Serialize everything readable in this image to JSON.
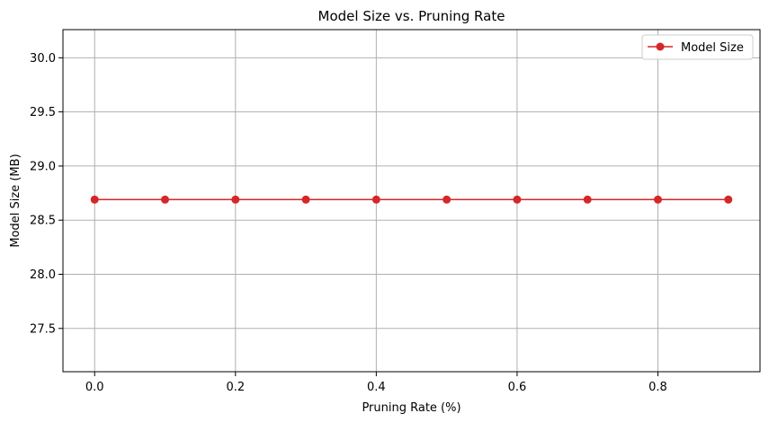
{
  "chart_data": {
    "type": "line",
    "title": "Model Size vs. Pruning Rate",
    "xlabel": "Pruning Rate (%)",
    "ylabel": "Model Size (MB)",
    "x": [
      0.0,
      0.1,
      0.2,
      0.3,
      0.4,
      0.5,
      0.6,
      0.7,
      0.8,
      0.9
    ],
    "series": [
      {
        "name": "Model Size",
        "values": [
          28.69,
          28.69,
          28.69,
          28.69,
          28.69,
          28.69,
          28.69,
          28.69,
          28.69,
          28.69
        ],
        "color": "#d62728",
        "marker": "circle"
      }
    ],
    "xlim": [
      -0.045,
      0.945
    ],
    "ylim": [
      27.1,
      30.26
    ],
    "xticks": [
      0.0,
      0.2,
      0.4,
      0.6,
      0.8
    ],
    "xtick_labels": [
      "0.0",
      "0.2",
      "0.4",
      "0.6",
      "0.8"
    ],
    "yticks": [
      27.5,
      28.0,
      28.5,
      29.0,
      29.5,
      30.0
    ],
    "ytick_labels": [
      "27.5",
      "28.0",
      "28.5",
      "29.0",
      "29.5",
      "30.0"
    ],
    "grid": true,
    "legend_position": "top-right"
  }
}
